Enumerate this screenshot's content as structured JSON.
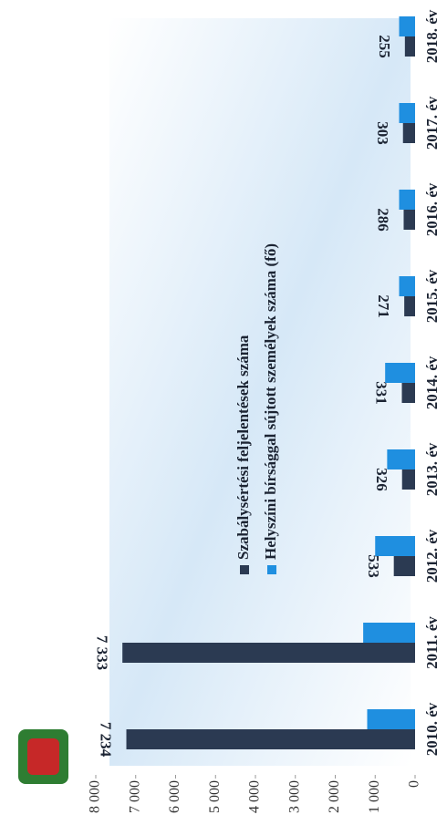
{
  "chart_data": {
    "type": "bar",
    "categories": [
      "2010. év",
      "2011. év",
      "2012. év",
      "2013. év",
      "2014. év",
      "2015. év",
      "2016. év",
      "2017. év",
      "2018. év"
    ],
    "series": [
      {
        "name": "Szabálysértési feljelentések száma",
        "color": "#2b3a52",
        "values": [
          7234,
          7333,
          533,
          326,
          331,
          271,
          286,
          303,
          255
        ],
        "value_labels": [
          "7 234",
          "7 333",
          "533",
          "326",
          "331",
          "271",
          "286",
          "303",
          "255"
        ]
      },
      {
        "name": "Helyszíni bírsággal sújtott személyek száma (fő)",
        "color": "#1f8fe0",
        "values": [
          1200,
          1300,
          1000,
          700,
          750,
          400,
          400,
          400,
          400
        ]
      }
    ],
    "ylim": [
      0,
      8000
    ],
    "yticks": [
      0,
      {
        "value": 1000,
        "label": "1 000"
      },
      {
        "value": 2000,
        "label": "2 000"
      },
      {
        "value": 3000,
        "label": "3 000"
      },
      {
        "value": 4000,
        "label": "4 000"
      },
      {
        "value": 5000,
        "label": "5 000"
      },
      {
        "value": 6000,
        "label": "6 000"
      },
      {
        "value": 7000,
        "label": "7 000"
      },
      {
        "value": 8000,
        "label": "8 000"
      }
    ]
  }
}
